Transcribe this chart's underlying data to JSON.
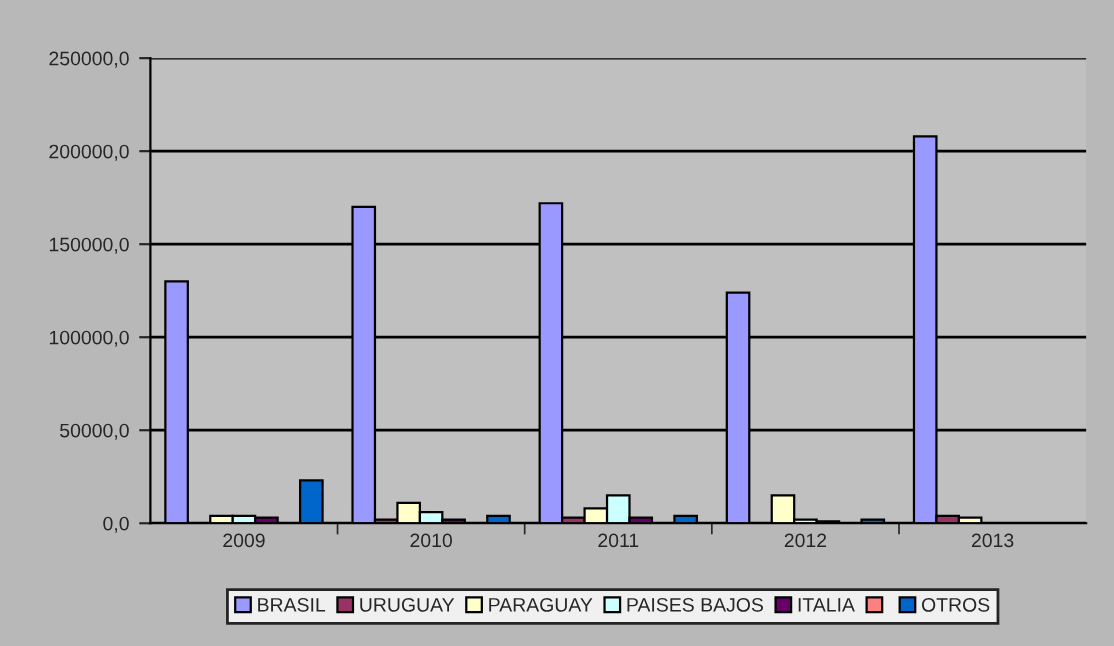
{
  "chart_data": {
    "type": "bar",
    "categories": [
      "2009",
      "2010",
      "2011",
      "2012",
      "2013"
    ],
    "series": [
      {
        "name": "BRASIL",
        "color": "#9999ff",
        "values": [
          130000,
          170000,
          172000,
          124000,
          208000
        ]
      },
      {
        "name": "URUGUAY",
        "color": "#993366",
        "values": [
          null,
          2000,
          3000,
          null,
          4000
        ]
      },
      {
        "name": "PARAGUAY",
        "color": "#ffffcc",
        "values": [
          4000,
          11000,
          8000,
          15000,
          3000
        ]
      },
      {
        "name": "PAISES BAJOS",
        "color": "#ccffff",
        "values": [
          4000,
          6000,
          15000,
          2000,
          null
        ]
      },
      {
        "name": "ITALIA",
        "color": "#660066",
        "values": [
          3000,
          2000,
          3000,
          1000,
          null
        ]
      },
      {
        "color": "#ff8080",
        "values": [
          null,
          null,
          null,
          null,
          null
        ]
      },
      {
        "name": "OTROS",
        "color": "#0066cc",
        "values": [
          23000,
          4000,
          4000,
          2000,
          null
        ]
      }
    ],
    "ylim": [
      0,
      250000
    ],
    "yticks": [
      {
        "value": 0,
        "label": "0,0"
      },
      {
        "value": 50000,
        "label": "50000,0"
      },
      {
        "value": 100000,
        "label": "100000,0"
      },
      {
        "value": 150000,
        "label": "150000,0"
      },
      {
        "value": 200000,
        "label": "200000,0"
      },
      {
        "value": 250000,
        "label": "250000,0"
      }
    ],
    "grid": "y",
    "legend": "bottom"
  }
}
